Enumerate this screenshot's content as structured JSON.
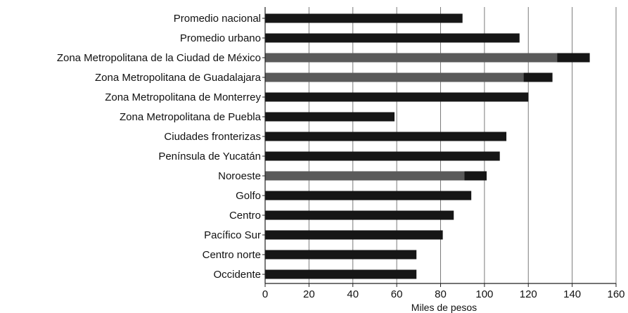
{
  "chart_data": {
    "type": "bar",
    "orientation": "horizontal",
    "categories": [
      "Promedio nacional",
      "Promedio urbano",
      "Zona Metropolitana de la Ciudad de México",
      "Zona Metropolitana  de Guadalajara",
      "Zona Metropolitana de Monterrey",
      "Zona Metropolitana de Puebla",
      "Ciudades fronterizas",
      "Península de Yucatán",
      "Noroeste",
      "Golfo",
      "Centro",
      "Pacífico Sur",
      "Centro norte",
      "Occidente"
    ],
    "values": [
      90,
      116,
      148,
      131,
      120,
      59,
      110,
      107,
      101,
      94,
      86,
      81,
      69,
      69
    ],
    "highlighted": [
      false,
      false,
      true,
      true,
      false,
      false,
      false,
      false,
      true,
      false,
      false,
      false,
      false,
      false
    ],
    "xlabel": "Miles de pesos",
    "ylabel": "",
    "xlim": [
      0,
      160
    ],
    "xticks": [
      "0",
      "20",
      "40",
      "60",
      "80",
      "100",
      "120",
      "140",
      "160"
    ],
    "grid": "vertical",
    "colors": {
      "bar": "#161616",
      "bar_highlight": "#5a5a5a",
      "axis": "#222222",
      "grid": "#7a7a7a"
    }
  }
}
